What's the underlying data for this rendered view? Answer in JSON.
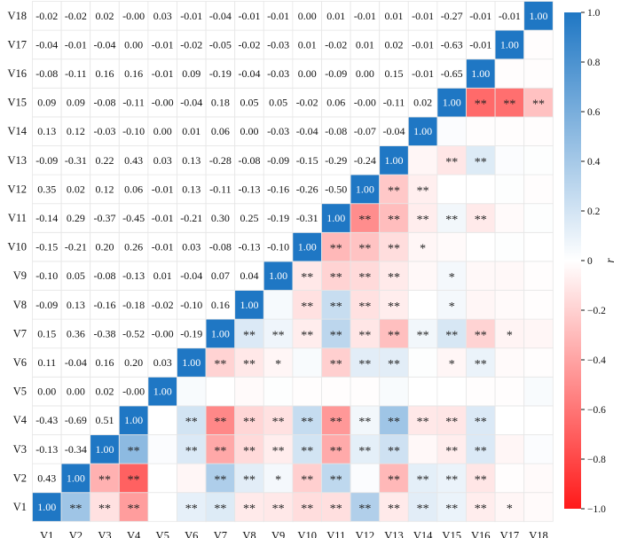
{
  "chart_data": {
    "type": "heatmap",
    "variables": [
      "V1",
      "V2",
      "V3",
      "V4",
      "V5",
      "V6",
      "V7",
      "V8",
      "V9",
      "V10",
      "V11",
      "V12",
      "V13",
      "V14",
      "V15",
      "V16",
      "V17",
      "V18"
    ],
    "colorbar": {
      "label": "r",
      "range": [
        -1.0,
        1.0
      ],
      "ticks": [
        "1.0",
        "0.8",
        "0.6",
        "0.4",
        "0.2",
        "0",
        "−0.2",
        "−0.4",
        "−0.6",
        "−0.8",
        "−1.0"
      ],
      "colors": {
        "positive": "#1f77c4",
        "neutral": "#ffffff",
        "negative": "#ff1a1a"
      }
    },
    "values": [
      [
        "1.00",
        "0.43",
        "-0.13",
        "-0.43",
        "0.00",
        "0.11",
        "0.15",
        "-0.09",
        "-0.10",
        "-0.15",
        "-0.14",
        "0.35",
        "-0.09",
        "0.13",
        "0.09",
        "-0.08",
        "-0.04",
        "-0.02"
      ],
      [
        "0.43",
        "1.00",
        "-0.34",
        "-0.69",
        "0.00",
        "-0.04",
        "0.36",
        "0.13",
        "0.05",
        "-0.21",
        "0.29",
        "0.02",
        "-0.31",
        "0.12",
        "0.09",
        "-0.11",
        "-0.01",
        "-0.02"
      ],
      [
        "-0.13",
        "-0.34",
        "1.00",
        "0.51",
        "0.02",
        "0.16",
        "-0.38",
        "-0.16",
        "-0.08",
        "0.20",
        "-0.37",
        "0.12",
        "0.22",
        "-0.03",
        "-0.08",
        "0.16",
        "-0.04",
        "0.02"
      ],
      [
        "-0.43",
        "-0.69",
        "0.51",
        "1.00",
        "-0.00",
        "0.20",
        "-0.52",
        "-0.18",
        "-0.13",
        "0.26",
        "-0.45",
        "0.06",
        "0.43",
        "-0.10",
        "-0.11",
        "0.16",
        "0.00",
        "-0.00"
      ],
      [
        "0.00",
        "0.00",
        "0.02",
        "-0.00",
        "1.00",
        "0.03",
        "-0.00",
        "-0.02",
        "0.01",
        "-0.01",
        "-0.01",
        "-0.01",
        "0.03",
        "0.00",
        "-0.00",
        "-0.01",
        "-0.01",
        "0.03"
      ],
      [
        "0.11",
        "-0.04",
        "0.16",
        "0.20",
        "0.03",
        "1.00",
        "-0.19",
        "-0.10",
        "-0.04",
        "0.03",
        "-0.21",
        "0.13",
        "0.13",
        "0.01",
        "-0.04",
        "0.09",
        "-0.02",
        "-0.01"
      ],
      [
        "0.15",
        "0.36",
        "-0.38",
        "-0.52",
        "-0.00",
        "-0.19",
        "1.00",
        "0.16",
        "0.07",
        "-0.08",
        "0.30",
        "-0.11",
        "-0.28",
        "0.06",
        "0.18",
        "-0.19",
        "-0.05",
        "-0.04"
      ],
      [
        "-0.09",
        "0.13",
        "-0.16",
        "-0.18",
        "-0.02",
        "-0.10",
        "0.16",
        "1.00",
        "0.04",
        "-0.13",
        "0.25",
        "-0.13",
        "-0.08",
        "0.00",
        "0.05",
        "-0.04",
        "-0.02",
        "-0.01"
      ],
      [
        "-0.10",
        "0.05",
        "-0.08",
        "-0.13",
        "0.01",
        "-0.04",
        "0.07",
        "0.04",
        "1.00",
        "-0.10",
        "-0.19",
        "-0.16",
        "-0.09",
        "-0.03",
        "0.05",
        "-0.03",
        "-0.03",
        "-0.01"
      ],
      [
        "-0.15",
        "-0.21",
        "0.20",
        "0.26",
        "-0.01",
        "0.03",
        "-0.08",
        "-0.13",
        "-0.10",
        "1.00",
        "-0.31",
        "-0.26",
        "-0.15",
        "-0.04",
        "-0.02",
        "0.00",
        "0.01",
        "0.00"
      ],
      [
        "-0.14",
        "0.29",
        "-0.37",
        "-0.45",
        "-0.01",
        "-0.21",
        "0.30",
        "0.25",
        "-0.19",
        "-0.31",
        "1.00",
        "-0.50",
        "-0.29",
        "-0.08",
        "0.06",
        "-0.09",
        "-0.02",
        "0.01"
      ],
      [
        "0.35",
        "0.02",
        "0.12",
        "0.06",
        "-0.01",
        "0.13",
        "-0.11",
        "-0.13",
        "-0.16",
        "-0.26",
        "-0.50",
        "1.00",
        "-0.24",
        "-0.07",
        "-0.00",
        "0.00",
        "0.01",
        "-0.01"
      ],
      [
        "-0.09",
        "-0.31",
        "0.22",
        "0.43",
        "0.03",
        "0.13",
        "-0.28",
        "-0.08",
        "-0.09",
        "-0.15",
        "-0.29",
        "-0.24",
        "1.00",
        "-0.04",
        "-0.11",
        "0.15",
        "0.02",
        "0.01"
      ],
      [
        "0.13",
        "0.12",
        "-0.03",
        "-0.10",
        "0.00",
        "0.01",
        "0.06",
        "0.00",
        "-0.03",
        "-0.04",
        "-0.08",
        "-0.07",
        "-0.04",
        "1.00",
        "0.02",
        "-0.01",
        "-0.01",
        "-0.01"
      ],
      [
        "0.09",
        "0.09",
        "-0.08",
        "-0.11",
        "-0.00",
        "-0.04",
        "0.18",
        "0.05",
        "0.05",
        "-0.02",
        "0.06",
        "-0.00",
        "-0.11",
        "0.02",
        "1.00",
        "-0.65",
        "-0.63",
        "-0.27"
      ],
      [
        "-0.08",
        "-0.11",
        "0.16",
        "0.16",
        "-0.01",
        "0.09",
        "-0.19",
        "-0.04",
        "-0.03",
        "0.00",
        "-0.09",
        "0.00",
        "0.15",
        "-0.01",
        "-0.65",
        "1.00",
        "-0.01",
        "-0.01"
      ],
      [
        "-0.04",
        "-0.01",
        "-0.04",
        "0.00",
        "-0.01",
        "-0.02",
        "-0.05",
        "-0.02",
        "-0.03",
        "0.01",
        "-0.02",
        "0.01",
        "0.02",
        "-0.01",
        "-0.63",
        "-0.01",
        "1.00",
        "-0.01"
      ],
      [
        "-0.02",
        "-0.02",
        "0.02",
        "-0.00",
        "0.03",
        "-0.01",
        "-0.04",
        "-0.01",
        "-0.01",
        "0.00",
        "0.01",
        "-0.01",
        "0.01",
        "-0.01",
        "-0.27",
        "-0.01",
        "-0.01",
        "1.00"
      ]
    ],
    "significance": [
      {
        "row": "V1",
        "col": "V2",
        "mark": "**"
      },
      {
        "row": "V1",
        "col": "V3",
        "mark": "**"
      },
      {
        "row": "V1",
        "col": "V4",
        "mark": "**"
      },
      {
        "row": "V1",
        "col": "V6",
        "mark": "**"
      },
      {
        "row": "V1",
        "col": "V7",
        "mark": "**"
      },
      {
        "row": "V1",
        "col": "V8",
        "mark": "**"
      },
      {
        "row": "V1",
        "col": "V9",
        "mark": "**"
      },
      {
        "row": "V1",
        "col": "V10",
        "mark": "**"
      },
      {
        "row": "V1",
        "col": "V11",
        "mark": "**"
      },
      {
        "row": "V1",
        "col": "V12",
        "mark": "**"
      },
      {
        "row": "V1",
        "col": "V13",
        "mark": "**"
      },
      {
        "row": "V1",
        "col": "V14",
        "mark": "**"
      },
      {
        "row": "V1",
        "col": "V15",
        "mark": "**"
      },
      {
        "row": "V1",
        "col": "V16",
        "mark": "**"
      },
      {
        "row": "V1",
        "col": "V17",
        "mark": "*"
      },
      {
        "row": "V2",
        "col": "V3",
        "mark": "**"
      },
      {
        "row": "V2",
        "col": "V4",
        "mark": "**"
      },
      {
        "row": "V2",
        "col": "V7",
        "mark": "**"
      },
      {
        "row": "V2",
        "col": "V8",
        "mark": "**"
      },
      {
        "row": "V2",
        "col": "V9",
        "mark": "*"
      },
      {
        "row": "V2",
        "col": "V10",
        "mark": "**"
      },
      {
        "row": "V2",
        "col": "V11",
        "mark": "**"
      },
      {
        "row": "V2",
        "col": "V13",
        "mark": "**"
      },
      {
        "row": "V2",
        "col": "V14",
        "mark": "**"
      },
      {
        "row": "V2",
        "col": "V15",
        "mark": "**"
      },
      {
        "row": "V2",
        "col": "V16",
        "mark": "**"
      },
      {
        "row": "V3",
        "col": "V4",
        "mark": "**"
      },
      {
        "row": "V3",
        "col": "V6",
        "mark": "**"
      },
      {
        "row": "V3",
        "col": "V7",
        "mark": "**"
      },
      {
        "row": "V3",
        "col": "V8",
        "mark": "**"
      },
      {
        "row": "V3",
        "col": "V9",
        "mark": "**"
      },
      {
        "row": "V3",
        "col": "V10",
        "mark": "**"
      },
      {
        "row": "V3",
        "col": "V11",
        "mark": "**"
      },
      {
        "row": "V3",
        "col": "V12",
        "mark": "**"
      },
      {
        "row": "V3",
        "col": "V13",
        "mark": "**"
      },
      {
        "row": "V3",
        "col": "V15",
        "mark": "**"
      },
      {
        "row": "V3",
        "col": "V16",
        "mark": "**"
      },
      {
        "row": "V4",
        "col": "V6",
        "mark": "**"
      },
      {
        "row": "V4",
        "col": "V7",
        "mark": "**"
      },
      {
        "row": "V4",
        "col": "V8",
        "mark": "**"
      },
      {
        "row": "V4",
        "col": "V9",
        "mark": "**"
      },
      {
        "row": "V4",
        "col": "V10",
        "mark": "**"
      },
      {
        "row": "V4",
        "col": "V11",
        "mark": "**"
      },
      {
        "row": "V4",
        "col": "V12",
        "mark": "**"
      },
      {
        "row": "V4",
        "col": "V13",
        "mark": "**"
      },
      {
        "row": "V4",
        "col": "V14",
        "mark": "**"
      },
      {
        "row": "V4",
        "col": "V15",
        "mark": "**"
      },
      {
        "row": "V4",
        "col": "V16",
        "mark": "**"
      },
      {
        "row": "V6",
        "col": "V7",
        "mark": "**"
      },
      {
        "row": "V6",
        "col": "V8",
        "mark": "**"
      },
      {
        "row": "V6",
        "col": "V9",
        "mark": "*"
      },
      {
        "row": "V6",
        "col": "V11",
        "mark": "**"
      },
      {
        "row": "V6",
        "col": "V12",
        "mark": "**"
      },
      {
        "row": "V6",
        "col": "V13",
        "mark": "**"
      },
      {
        "row": "V6",
        "col": "V15",
        "mark": "*"
      },
      {
        "row": "V6",
        "col": "V16",
        "mark": "**"
      },
      {
        "row": "V7",
        "col": "V8",
        "mark": "**"
      },
      {
        "row": "V7",
        "col": "V9",
        "mark": "**"
      },
      {
        "row": "V7",
        "col": "V10",
        "mark": "**"
      },
      {
        "row": "V7",
        "col": "V11",
        "mark": "**"
      },
      {
        "row": "V7",
        "col": "V12",
        "mark": "**"
      },
      {
        "row": "V7",
        "col": "V13",
        "mark": "**"
      },
      {
        "row": "V7",
        "col": "V14",
        "mark": "**"
      },
      {
        "row": "V7",
        "col": "V15",
        "mark": "**"
      },
      {
        "row": "V7",
        "col": "V16",
        "mark": "**"
      },
      {
        "row": "V7",
        "col": "V17",
        "mark": "*"
      },
      {
        "row": "V8",
        "col": "V10",
        "mark": "**"
      },
      {
        "row": "V8",
        "col": "V11",
        "mark": "**"
      },
      {
        "row": "V8",
        "col": "V12",
        "mark": "**"
      },
      {
        "row": "V8",
        "col": "V13",
        "mark": "**"
      },
      {
        "row": "V8",
        "col": "V15",
        "mark": "*"
      },
      {
        "row": "V9",
        "col": "V10",
        "mark": "**"
      },
      {
        "row": "V9",
        "col": "V11",
        "mark": "**"
      },
      {
        "row": "V9",
        "col": "V12",
        "mark": "**"
      },
      {
        "row": "V9",
        "col": "V13",
        "mark": "**"
      },
      {
        "row": "V9",
        "col": "V15",
        "mark": "*"
      },
      {
        "row": "V10",
        "col": "V11",
        "mark": "**"
      },
      {
        "row": "V10",
        "col": "V12",
        "mark": "**"
      },
      {
        "row": "V10",
        "col": "V13",
        "mark": "**"
      },
      {
        "row": "V10",
        "col": "V14",
        "mark": "*"
      },
      {
        "row": "V11",
        "col": "V12",
        "mark": "**"
      },
      {
        "row": "V11",
        "col": "V13",
        "mark": "**"
      },
      {
        "row": "V11",
        "col": "V14",
        "mark": "**"
      },
      {
        "row": "V11",
        "col": "V15",
        "mark": "**"
      },
      {
        "row": "V11",
        "col": "V16",
        "mark": "**"
      },
      {
        "row": "V12",
        "col": "V13",
        "mark": "**"
      },
      {
        "row": "V12",
        "col": "V14",
        "mark": "**"
      },
      {
        "row": "V13",
        "col": "V15",
        "mark": "**"
      },
      {
        "row": "V13",
        "col": "V16",
        "mark": "**"
      },
      {
        "row": "V15",
        "col": "V16",
        "mark": "**"
      },
      {
        "row": "V15",
        "col": "V17",
        "mark": "**"
      },
      {
        "row": "V15",
        "col": "V18",
        "mark": "**"
      }
    ]
  }
}
